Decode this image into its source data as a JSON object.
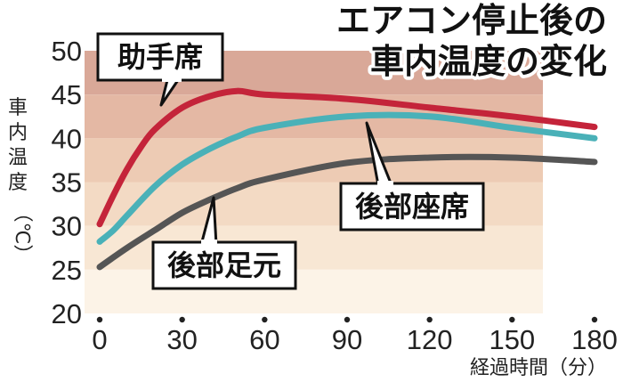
{
  "chart_data": {
    "type": "line",
    "title_line1": "エアコン停止後の",
    "title_line2": "車内温度の変化",
    "xlabel": "経過時間（分）",
    "ylabel_chars": [
      "車",
      "内",
      "温",
      "度"
    ],
    "ylabel_unit": "（℃）",
    "xlim": [
      0,
      180
    ],
    "ylim": [
      20,
      50
    ],
    "x_ticks": [
      "0",
      "30",
      "60",
      "90",
      "120",
      "150",
      "180"
    ],
    "y_ticks": [
      "20",
      "25",
      "30",
      "35",
      "40",
      "45",
      "50"
    ],
    "band_colors": [
      "#d9a898",
      "#e4b8a4",
      "#edcbb4",
      "#f3dac4",
      "#f8e7d4",
      "#fcf3e7"
    ],
    "series": [
      {
        "name": "助手席",
        "color": "#c4243a",
        "x": [
          0,
          5,
          10,
          15,
          20,
          30,
          40,
          50,
          60,
          90,
          120,
          150,
          180
        ],
        "y": [
          30.2,
          33.5,
          36.5,
          39.0,
          41.0,
          43.5,
          44.8,
          45.4,
          45.0,
          44.5,
          43.5,
          42.5,
          41.3
        ]
      },
      {
        "name": "後部座席",
        "color": "#4ab1b8",
        "x": [
          0,
          5,
          10,
          20,
          30,
          40,
          50,
          60,
          90,
          120,
          150,
          180
        ],
        "y": [
          28.2,
          29.5,
          31.2,
          34.5,
          37.0,
          38.8,
          40.2,
          41.2,
          42.5,
          42.5,
          41.2,
          40.0
        ]
      },
      {
        "name": "後部足元",
        "color": "#555555",
        "x": [
          0,
          10,
          20,
          30,
          40,
          50,
          60,
          90,
          120,
          150,
          180
        ],
        "y": [
          25.3,
          27.5,
          29.5,
          31.5,
          33.0,
          34.3,
          35.3,
          37.2,
          37.8,
          37.8,
          37.3
        ]
      }
    ]
  }
}
